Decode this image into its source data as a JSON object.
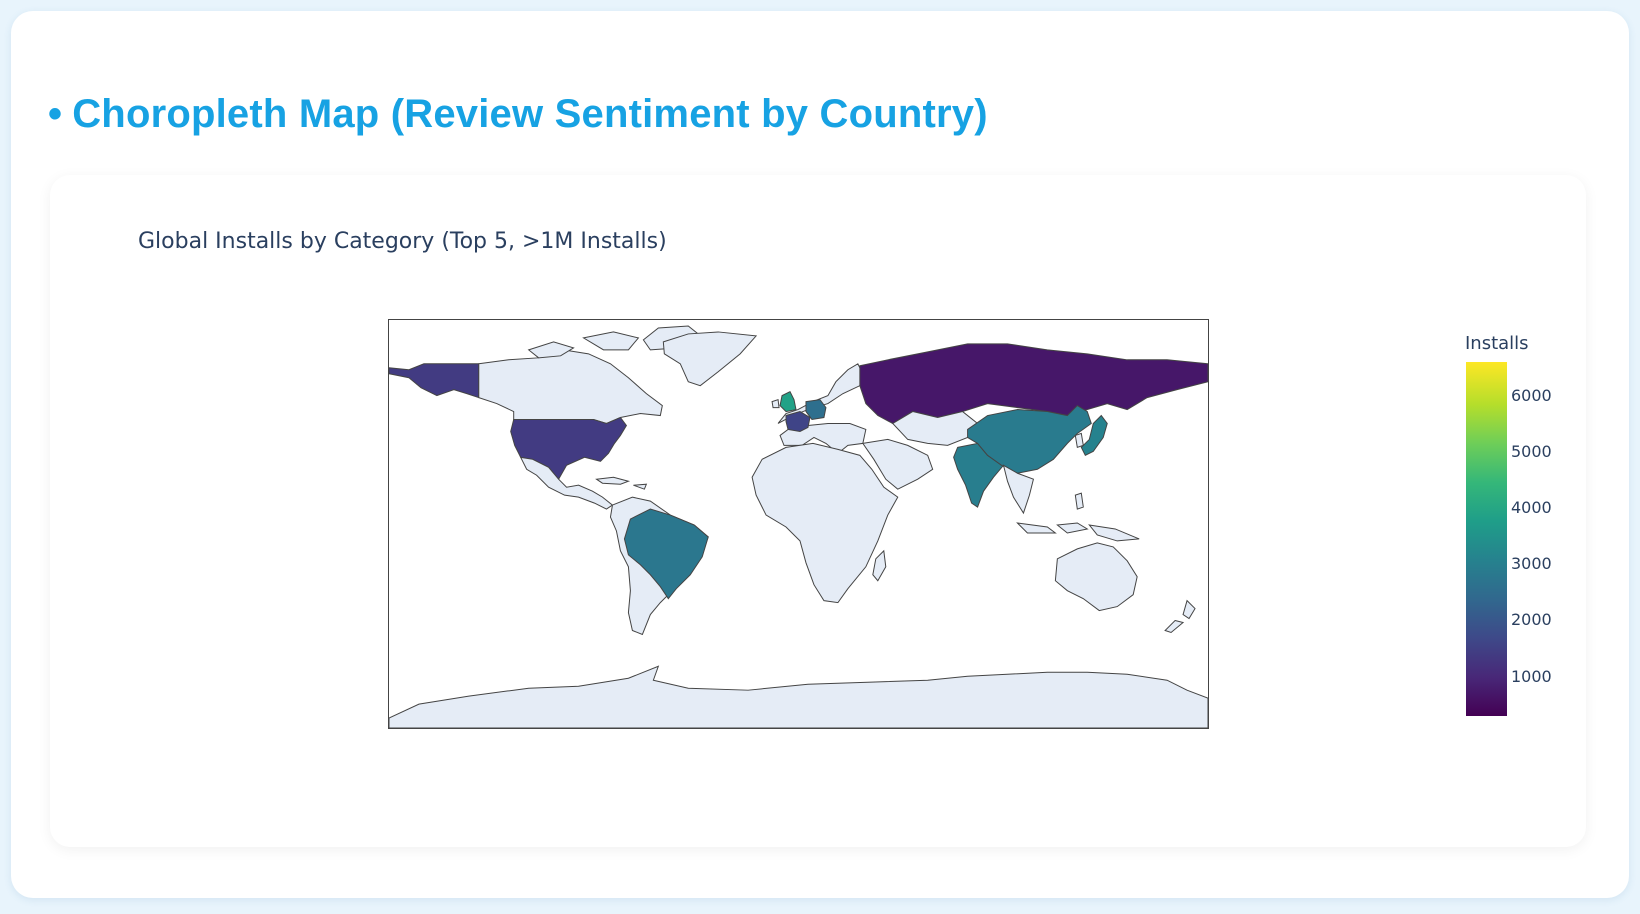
{
  "section": {
    "bullet": "•",
    "title": "Choropleth Map (Review Sentiment by Country)"
  },
  "chart_data": {
    "type": "choropleth",
    "title": "Global Installs by Category (Top 5, >1M Installs)",
    "colorbar_title": "Installs",
    "colorscale": "Viridis",
    "colorbar_range": [
      300,
      6600
    ],
    "colorbar_ticks": [
      "6000",
      "5000",
      "4000",
      "3000",
      "2000",
      "1000"
    ],
    "colorbar_tick_values": [
      6000,
      5000,
      4000,
      3000,
      2000,
      1000
    ],
    "countries": [
      {
        "name": "United States",
        "value": 1400
      },
      {
        "name": "Russia",
        "value": 700
      },
      {
        "name": "China",
        "value": 2900
      },
      {
        "name": "India",
        "value": 3000
      },
      {
        "name": "Brazil",
        "value": 2800
      },
      {
        "name": "United Kingdom",
        "value": 3900
      },
      {
        "name": "Germany",
        "value": 2600
      },
      {
        "name": "France",
        "value": 1600
      },
      {
        "name": "Japan",
        "value": 3100
      }
    ]
  }
}
